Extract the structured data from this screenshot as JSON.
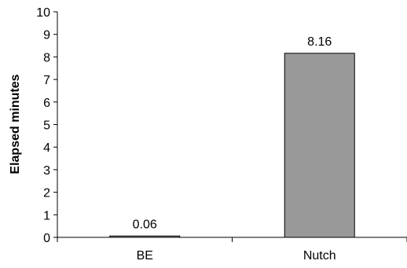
{
  "chart_data": {
    "type": "bar",
    "title": "",
    "xlabel": "",
    "ylabel": "Elapsed minutes",
    "categories": [
      "BE",
      "Nutch"
    ],
    "values": [
      0.06,
      8.16
    ],
    "data_labels": [
      "0.06",
      "8.16"
    ],
    "ylim": [
      0,
      10
    ],
    "yticks": [
      0,
      1,
      2,
      3,
      4,
      5,
      6,
      7,
      8,
      9,
      10
    ],
    "grid": false,
    "legend": "none",
    "bar_color": "#999999",
    "bar_edge_color": "#000000"
  }
}
